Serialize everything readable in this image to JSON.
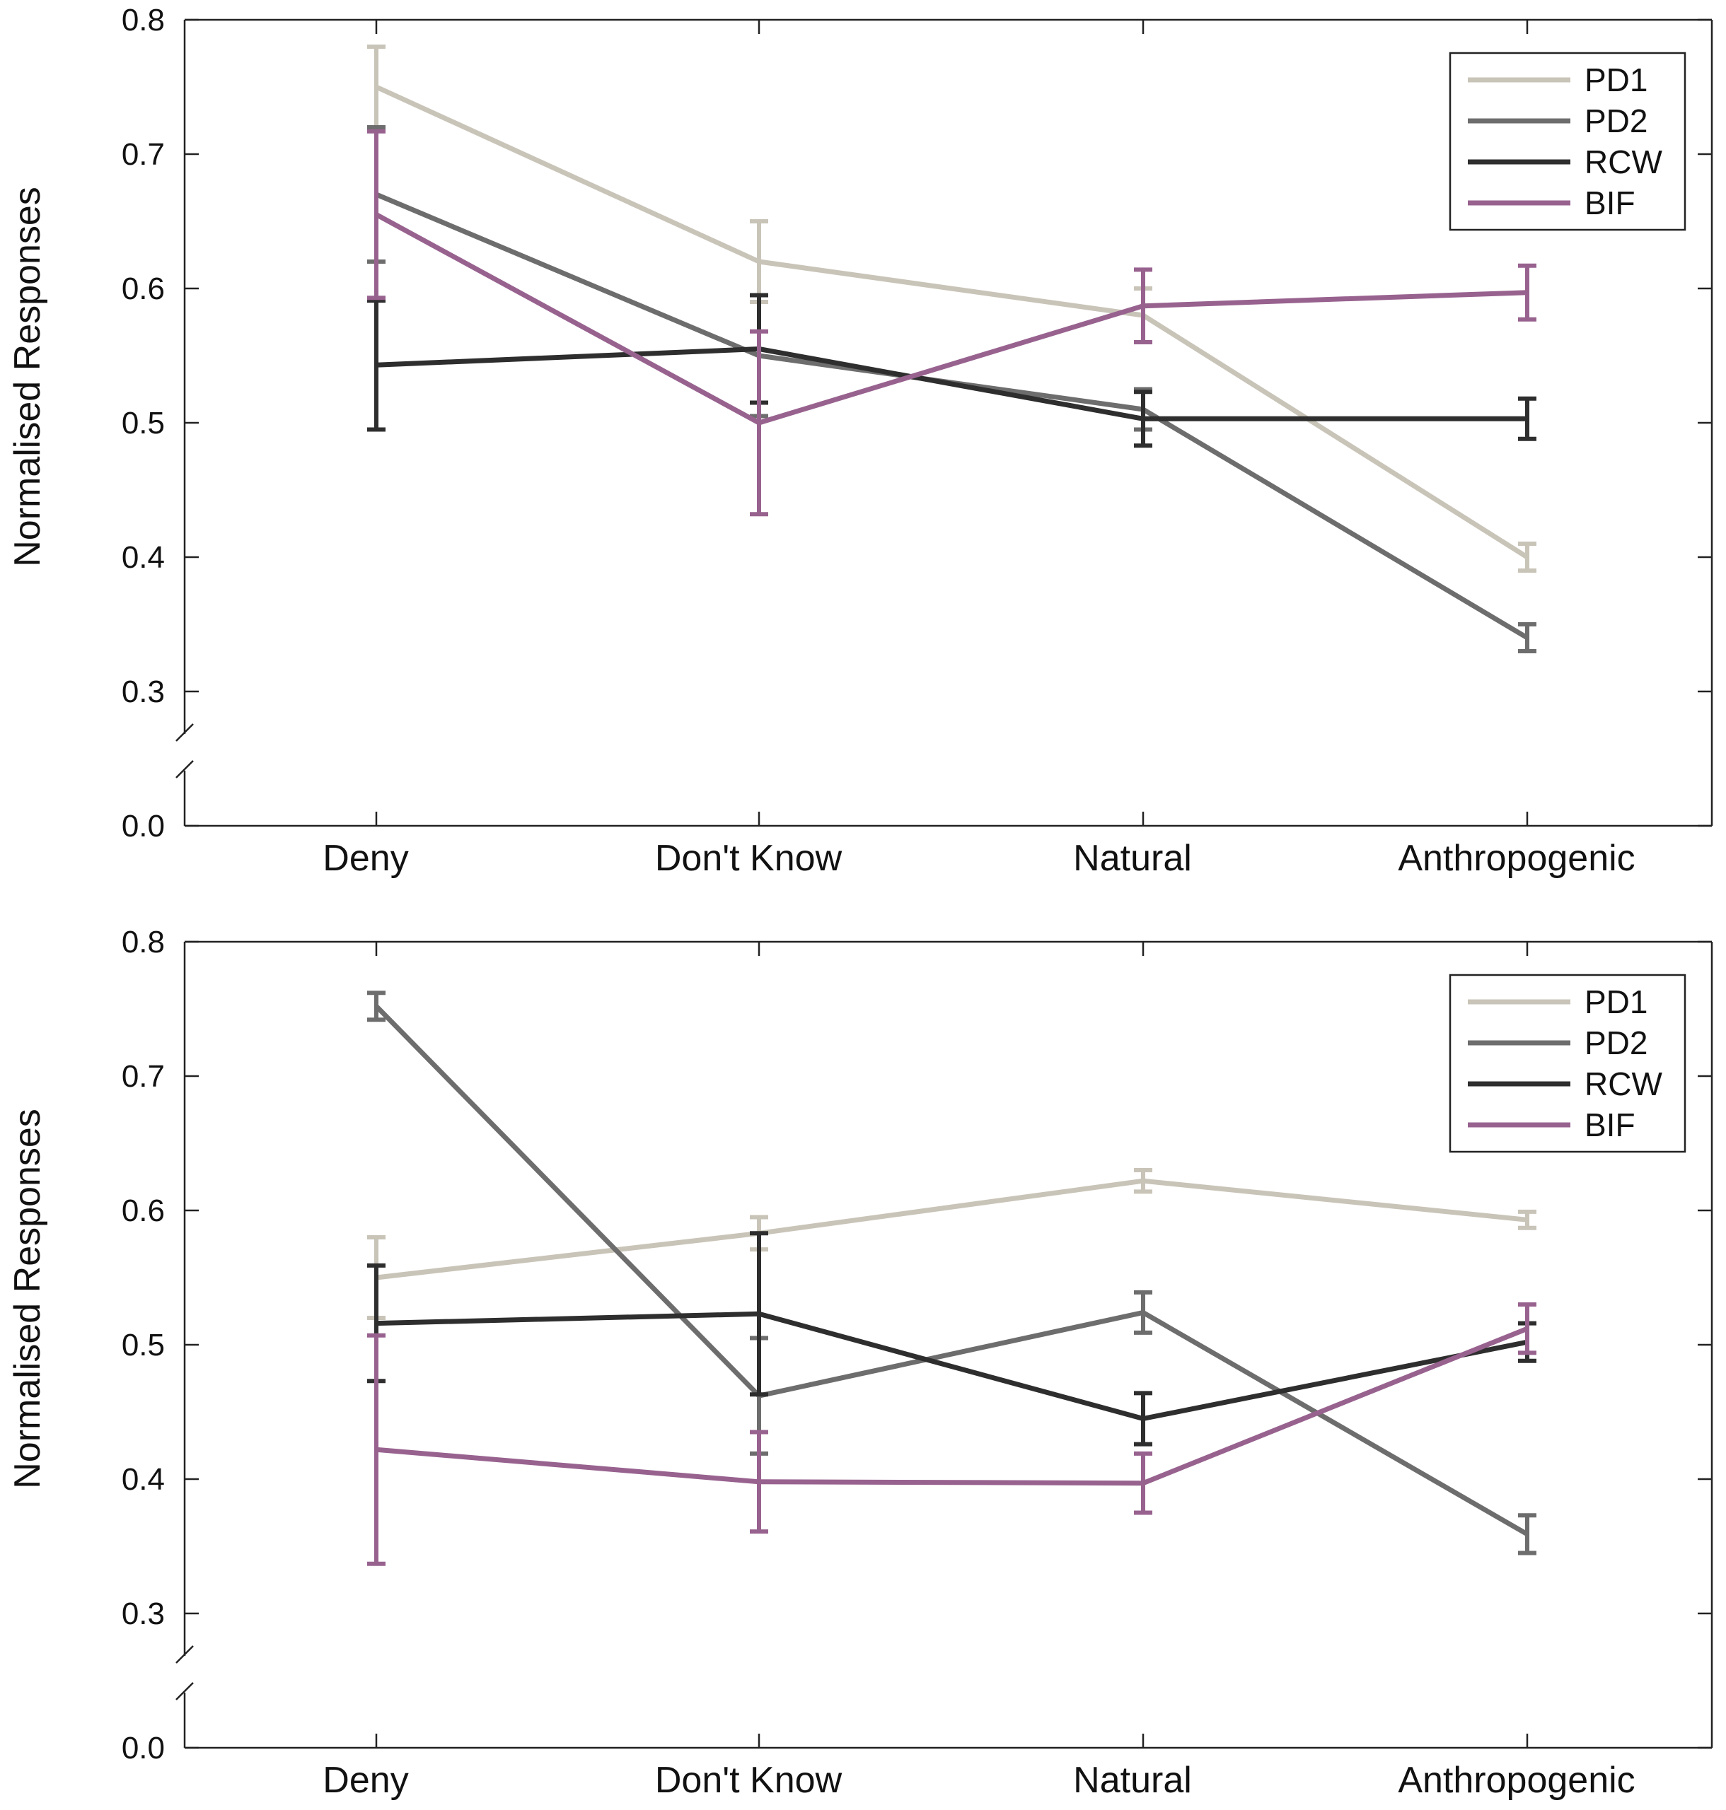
{
  "chart_data": [
    {
      "type": "line",
      "categories": [
        "Deny",
        "Don't Know",
        "Natural",
        "Anthropogenic"
      ],
      "ylabel": "Normalised Responses",
      "yticks": [
        "0.0",
        "0.3",
        "0.4",
        "0.5",
        "0.6",
        "0.7",
        "0.8"
      ],
      "ylim": [
        0.3,
        0.8
      ],
      "axis_break": true,
      "legend_position": "top-right",
      "series": [
        {
          "name": "PD1",
          "color": "#c9c4b8",
          "values": [
            0.75,
            0.62,
            0.58,
            0.4
          ],
          "errors": [
            0.03,
            0.03,
            0.02,
            0.01
          ]
        },
        {
          "name": "PD2",
          "color": "#6d6d6d",
          "values": [
            0.67,
            0.55,
            0.51,
            0.34
          ],
          "errors": [
            0.05,
            0.045,
            0.015,
            0.01
          ]
        },
        {
          "name": "RCW",
          "color": "#2e2e2e",
          "values": [
            0.543,
            0.555,
            0.503,
            0.503
          ],
          "errors": [
            0.048,
            0.04,
            0.02,
            0.015
          ]
        },
        {
          "name": "BIF",
          "color": "#98628f",
          "values": [
            0.655,
            0.5,
            0.587,
            0.597
          ],
          "errors": [
            0.062,
            0.068,
            0.027,
            0.02
          ]
        }
      ]
    },
    {
      "type": "line",
      "categories": [
        "Deny",
        "Don't Know",
        "Natural",
        "Anthropogenic"
      ],
      "ylabel": "Normalised Responses",
      "yticks": [
        "0.0",
        "0.3",
        "0.4",
        "0.5",
        "0.6",
        "0.7",
        "0.8"
      ],
      "ylim": [
        0.3,
        0.8
      ],
      "axis_break": true,
      "legend_position": "top-right",
      "series": [
        {
          "name": "PD1",
          "color": "#c9c4b8",
          "values": [
            0.55,
            0.583,
            0.622,
            0.593
          ],
          "errors": [
            0.03,
            0.012,
            0.008,
            0.006
          ]
        },
        {
          "name": "PD2",
          "color": "#6d6d6d",
          "values": [
            0.752,
            0.462,
            0.524,
            0.359
          ],
          "errors": [
            0.01,
            0.043,
            0.015,
            0.014
          ]
        },
        {
          "name": "RCW",
          "color": "#2e2e2e",
          "values": [
            0.516,
            0.523,
            0.445,
            0.502
          ],
          "errors": [
            0.043,
            0.06,
            0.019,
            0.014
          ]
        },
        {
          "name": "BIF",
          "color": "#98628f",
          "values": [
            0.422,
            0.398,
            0.397,
            0.512
          ],
          "errors": [
            0.085,
            0.037,
            0.022,
            0.018
          ]
        }
      ]
    }
  ]
}
